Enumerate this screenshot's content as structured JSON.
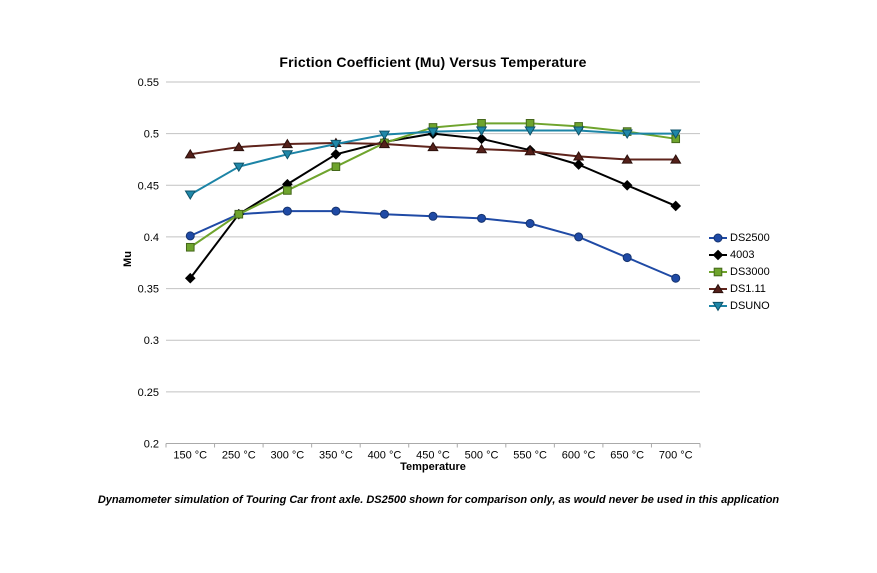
{
  "page": {
    "background": "#ffffff"
  },
  "chart_data": {
    "type": "line",
    "title": "Friction Coefficient (Mu) Versus Temperature",
    "xlabel": "Temperature",
    "ylabel": "Mu",
    "caption": "Dynamometer simulation of Touring Car front axle. DS2500 shown for comparison only, as would never be used in this application",
    "categories": [
      "150 °C",
      "250 °C",
      "300 °C",
      "350 °C",
      "400 °C",
      "450 °C",
      "500 °C",
      "550 °C",
      "600 °C",
      "650 °C",
      "700 °C"
    ],
    "series": [
      {
        "name": "DS2500",
        "marker": "circle",
        "color": "#1F4AA5",
        "marker_fill": "#1F4AA5",
        "marker_stroke": "#15336F",
        "values": [
          0.401,
          0.422,
          0.425,
          0.425,
          0.422,
          0.42,
          0.418,
          0.413,
          0.4,
          0.38,
          0.36
        ]
      },
      {
        "name": "4003",
        "marker": "diamond",
        "color": "#000000",
        "marker_fill": "#000000",
        "marker_stroke": "#000000",
        "values": [
          0.36,
          0.422,
          0.451,
          0.48,
          0.492,
          0.5,
          0.495,
          0.484,
          0.47,
          0.45,
          0.43
        ]
      },
      {
        "name": "DS3000",
        "marker": "square",
        "color": "#6FA42D",
        "marker_fill": "#6FA42D",
        "marker_stroke": "#44671A",
        "values": [
          0.39,
          0.422,
          0.445,
          0.468,
          0.491,
          0.506,
          0.51,
          0.51,
          0.507,
          0.502,
          0.495
        ]
      },
      {
        "name": "DS1.11",
        "marker": "triangle-up",
        "color": "#5F241C",
        "marker_fill": "#54201A",
        "marker_stroke": "#2B100C",
        "values": [
          0.48,
          0.487,
          0.49,
          0.491,
          0.49,
          0.487,
          0.485,
          0.483,
          0.478,
          0.475,
          0.475
        ]
      },
      {
        "name": "DSUNO",
        "marker": "triangle-down",
        "color": "#1C84A6",
        "marker_fill": "#1F87A8",
        "marker_stroke": "#0F536A",
        "values": [
          0.441,
          0.468,
          0.48,
          0.49,
          0.499,
          0.502,
          0.503,
          0.503,
          0.503,
          0.5,
          0.5
        ]
      }
    ],
    "ylim": [
      0.2,
      0.55
    ],
    "ytick_step": 0.05,
    "ytick_labels": [
      "0.55",
      "0.5",
      "0.45",
      "0.4",
      "0.35",
      "0.3",
      "0.25",
      "0.2"
    ],
    "grid": "horizontal",
    "gridline_color": "#C2C2C2",
    "axis_line_color": "#AAAAAA",
    "legend_position": "right"
  }
}
